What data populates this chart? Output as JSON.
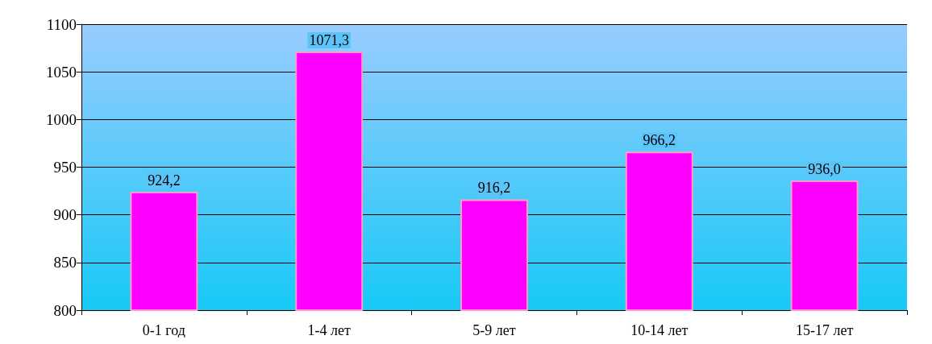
{
  "chart_data": {
    "type": "bar",
    "categories": [
      "0-1 год",
      "1-4 лет",
      "5-9 лет",
      "10-14 лет",
      "15-17 лет"
    ],
    "values": [
      924.2,
      1071.3,
      916.2,
      966.2,
      936.0
    ],
    "value_labels": [
      "924,2",
      "1071,3",
      "916,2",
      "966,2",
      "936,0"
    ],
    "color": "#ff00ff",
    "ylim": [
      800,
      1100
    ],
    "yticks": [
      800,
      850,
      900,
      950,
      1000,
      1050,
      1100
    ],
    "grid": "y"
  }
}
